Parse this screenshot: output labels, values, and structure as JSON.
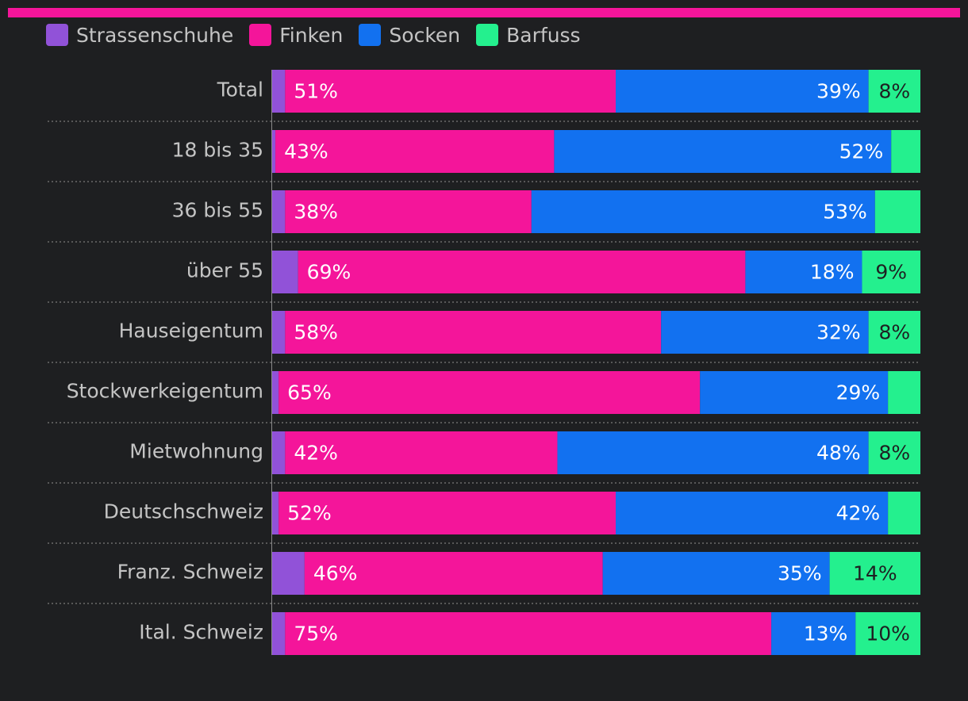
{
  "colors": {
    "background": "#1e1f21",
    "accent_bar": "#f4159a",
    "separator": "#6b6b6b",
    "axis": "#8a8a8a",
    "label_on_dark": "#ffffff",
    "label_on_light": "#1e1f21"
  },
  "chart_data": {
    "type": "bar",
    "orientation": "horizontal",
    "stacked": true,
    "normalized": true,
    "title": "",
    "xlabel": "",
    "ylabel": "",
    "xlim": [
      0,
      100
    ],
    "legend_position": "top-left",
    "categories": [
      "Total",
      "18 bis 35",
      "36 bis 55",
      "über 55",
      "Hauseigentum",
      "Stockwerkeigentum",
      "Mietwohnung",
      "Deutschschweiz",
      "Franz. Schweiz",
      "Ital. Schweiz"
    ],
    "series": [
      {
        "name": "Strassenschuhe",
        "color": "#9152d8",
        "values": [
          2,
          0.5,
          2,
          4,
          2,
          1,
          2,
          1,
          5,
          2
        ]
      },
      {
        "name": "Finken",
        "color": "#f4159a",
        "values": [
          51,
          43,
          38,
          69,
          58,
          65,
          42,
          52,
          46,
          75
        ]
      },
      {
        "name": "Socken",
        "color": "#1271f0",
        "values": [
          39,
          52,
          53,
          18,
          32,
          29,
          48,
          42,
          35,
          13
        ]
      },
      {
        "name": "Barfuss",
        "color": "#24f08e",
        "values": [
          8,
          5,
          7,
          9,
          8,
          5,
          8,
          5,
          14,
          10
        ]
      }
    ],
    "data_labels": [
      [
        "",
        "51%",
        "39%",
        "8%"
      ],
      [
        "",
        "43%",
        "52%",
        ""
      ],
      [
        "",
        "38%",
        "53%",
        ""
      ],
      [
        "",
        "69%",
        "18%",
        "9%"
      ],
      [
        "",
        "58%",
        "32%",
        "8%"
      ],
      [
        "",
        "65%",
        "29%",
        ""
      ],
      [
        "",
        "42%",
        "48%",
        "8%"
      ],
      [
        "",
        "52%",
        "42%",
        ""
      ],
      [
        "",
        "46%",
        "35%",
        "14%"
      ],
      [
        "",
        "75%",
        "13%",
        "10%"
      ]
    ]
  }
}
